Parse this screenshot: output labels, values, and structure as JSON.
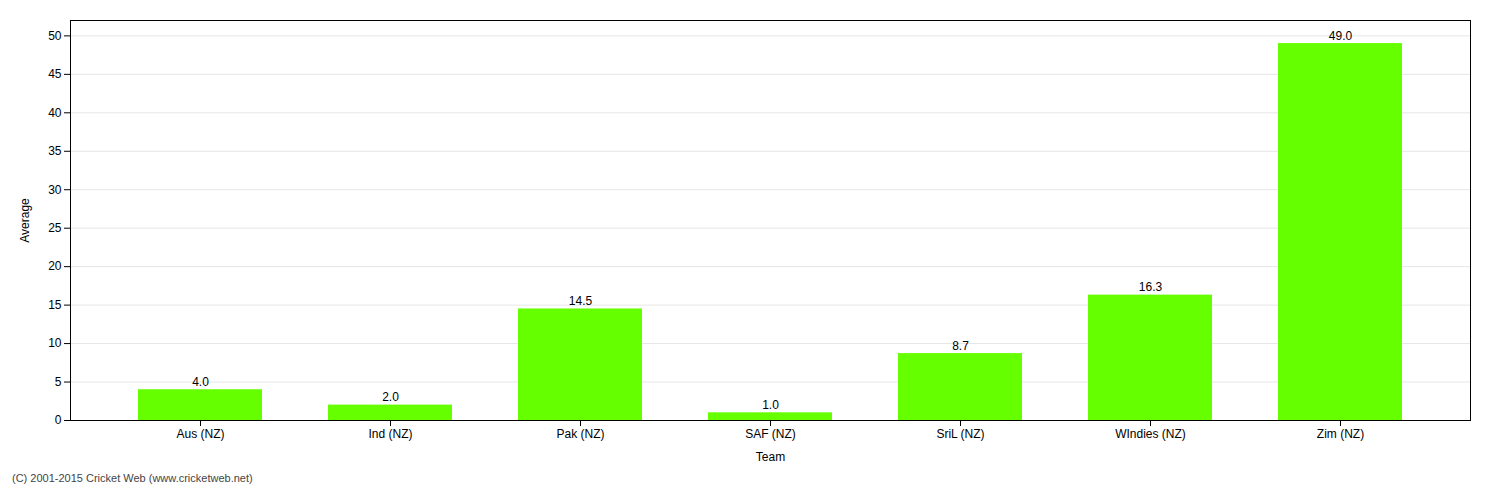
{
  "chart_data": {
    "type": "bar",
    "categories": [
      "Aus (NZ)",
      "Ind (NZ)",
      "Pak (NZ)",
      "SAF (NZ)",
      "SriL (NZ)",
      "WIndies (NZ)",
      "Zim (NZ)"
    ],
    "values": [
      4.0,
      2.0,
      14.5,
      1.0,
      8.7,
      16.3,
      49.0
    ],
    "value_labels": [
      "4.0",
      "2.0",
      "14.5",
      "1.0",
      "8.7",
      "16.3",
      "49.0"
    ],
    "data_labels": true,
    "color": "#66ff00",
    "xlabel": "Team",
    "ylabel": "Average",
    "ylim": [
      0,
      52
    ],
    "yticks": [
      0,
      5,
      10,
      15,
      20,
      25,
      30,
      35,
      40,
      45,
      50
    ],
    "grid": true,
    "annotations": [
      "(C) 2001-2015 Cricket Web (www.cricketweb.net)"
    ]
  }
}
